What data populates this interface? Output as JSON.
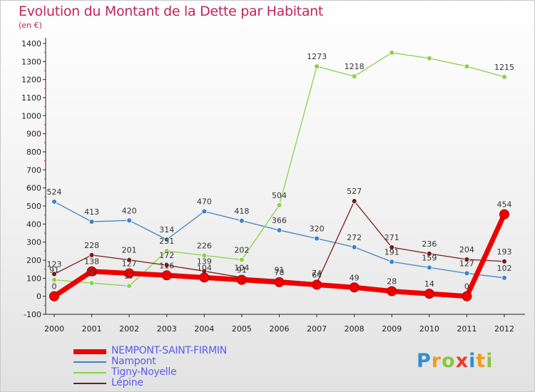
{
  "title": "Evolution du Montant de la Dette par Habitant",
  "subtitle": "(en €)",
  "logo": {
    "letters": [
      "P",
      "r",
      "o",
      "x",
      "i",
      "t",
      "i"
    ],
    "colors": [
      "#2f8fd0",
      "#f39a1c",
      "#8bc53f",
      "#e63a2e",
      "#2f8fd0",
      "#f39a1c",
      "#8bc53f"
    ]
  },
  "chart_data": {
    "type": "line",
    "title": "Evolution du Montant de la Dette par Habitant",
    "subtitle": "(en €)",
    "xlabel": "",
    "ylabel": "",
    "categories": [
      "2000",
      "2001",
      "2002",
      "2003",
      "2004",
      "2005",
      "2006",
      "2007",
      "2008",
      "2009",
      "2010",
      "2011",
      "2012"
    ],
    "ylim": [
      -100,
      1400
    ],
    "yticks": [
      -100,
      0,
      100,
      200,
      300,
      400,
      500,
      600,
      700,
      800,
      900,
      1000,
      1100,
      1200,
      1300,
      1400
    ],
    "grid": false,
    "legend_position": "bottom-left",
    "series": [
      {
        "name": "NEMPONT-SAINT-FIRMIN",
        "color": "#ee0000",
        "values": [
          0,
          138,
          127,
          116,
          104,
          91,
          78,
          64,
          49,
          28,
          14,
          0,
          454
        ]
      },
      {
        "name": "Nampont",
        "color": "#3d84c6",
        "values": [
          524,
          413,
          420,
          314,
          470,
          418,
          366,
          320,
          272,
          191,
          159,
          127,
          102
        ]
      },
      {
        "name": "Tigny-Noyelle",
        "color": "#8bd24a",
        "values": [
          91,
          73,
          57,
          251,
          226,
          202,
          504,
          1273,
          1218,
          1349,
          1318,
          1273,
          1215
        ]
      },
      {
        "name": "Lépine",
        "color": "#7a1a1a",
        "values": [
          123,
          228,
          201,
          172,
          139,
          104,
          91,
          74,
          527,
          271,
          236,
          204,
          193
        ]
      }
    ],
    "labels_shown": [
      [
        true,
        true,
        true,
        true,
        true,
        true,
        true,
        true,
        true,
        true,
        true,
        true,
        true
      ],
      [
        true,
        true,
        true,
        true,
        true,
        true,
        true,
        true,
        true,
        true,
        true,
        true,
        true
      ],
      [
        true,
        true,
        true,
        true,
        true,
        true,
        true,
        true,
        true,
        false,
        false,
        false,
        true
      ],
      [
        true,
        true,
        true,
        true,
        true,
        true,
        true,
        true,
        true,
        true,
        true,
        true,
        true
      ]
    ]
  }
}
